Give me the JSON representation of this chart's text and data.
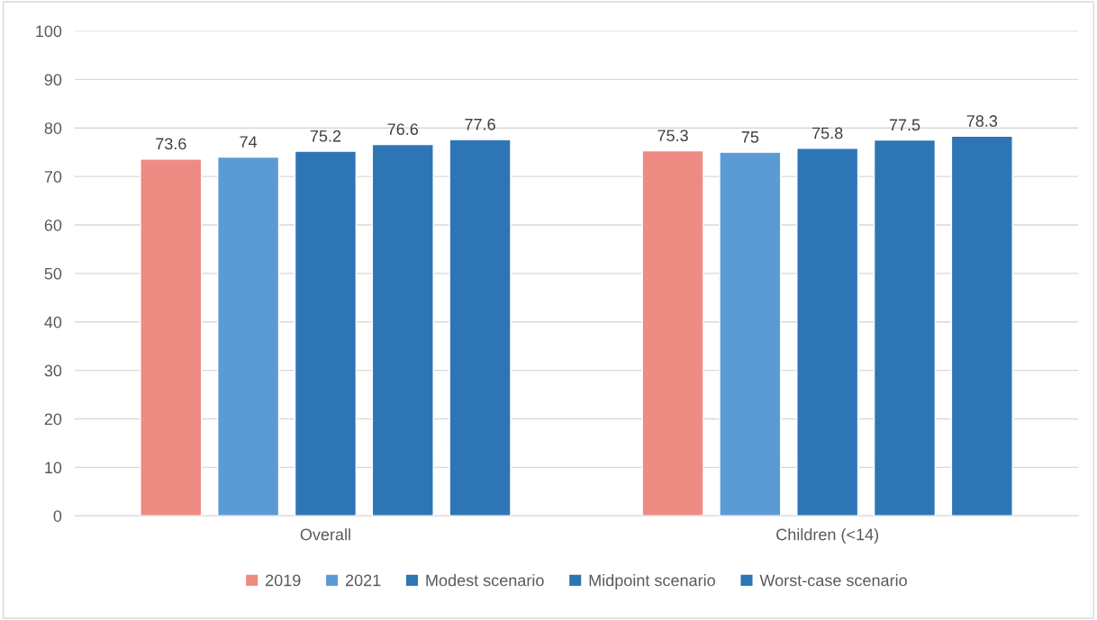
{
  "chart_data": {
    "type": "bar",
    "categories": [
      "Overall",
      "Children (<14)"
    ],
    "series": [
      {
        "name": "2019",
        "color": "#ee8b82",
        "values": [
          73.6,
          75.3
        ]
      },
      {
        "name": "2021",
        "color": "#5b9bd5",
        "values": [
          74,
          75
        ]
      },
      {
        "name": "Modest scenario",
        "color": "#2e75b6",
        "values": [
          75.2,
          75.8
        ]
      },
      {
        "name": "Midpoint scenario",
        "color": "#2e75b6",
        "values": [
          76.6,
          77.5
        ]
      },
      {
        "name": "Worst-case scenario",
        "color": "#2e75b6",
        "values": [
          77.6,
          78.3
        ]
      }
    ],
    "ylim": [
      0,
      100
    ],
    "yticks": [
      0,
      10,
      20,
      30,
      40,
      50,
      60,
      70,
      80,
      90,
      100
    ],
    "grid": "y",
    "legend": "bottom",
    "data_labels": true
  }
}
